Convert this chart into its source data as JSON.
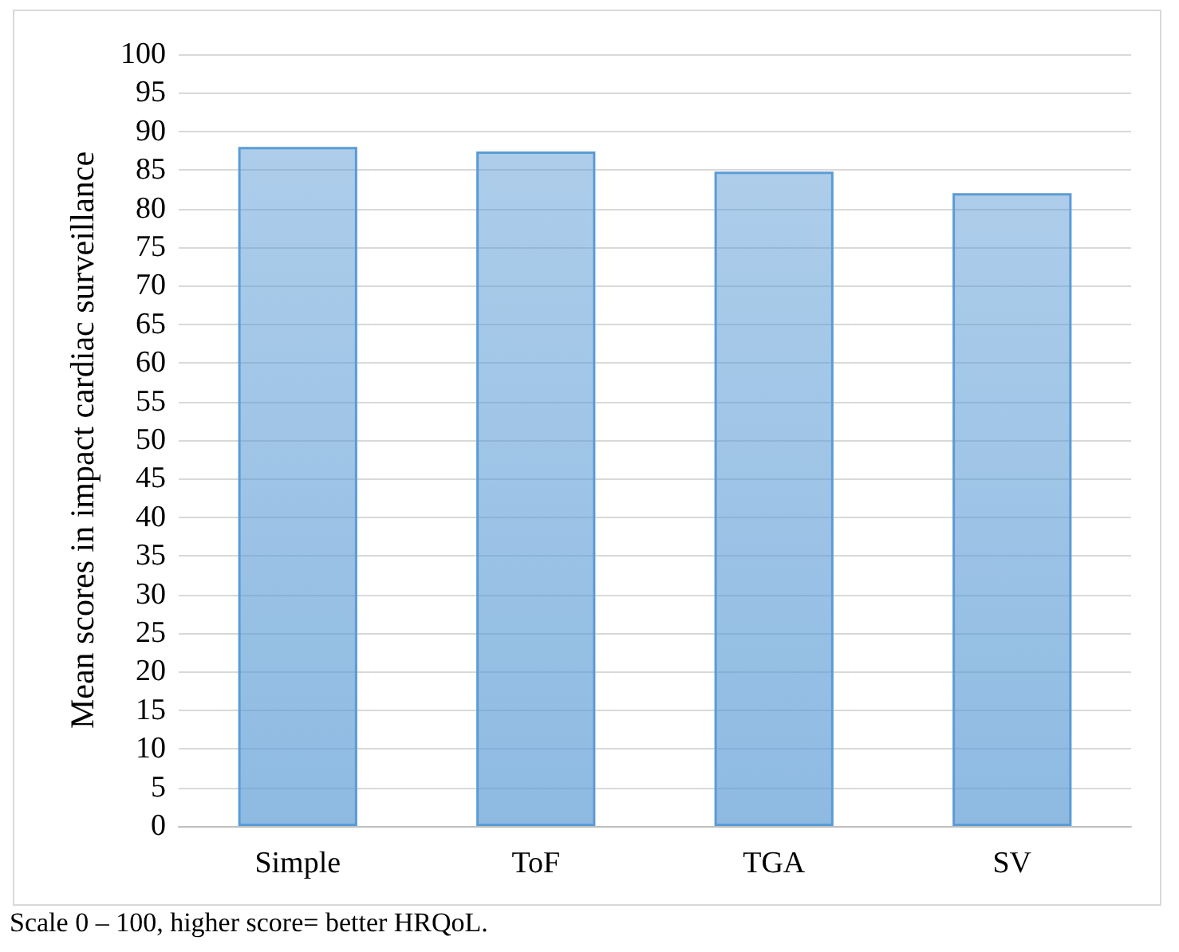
{
  "chart_data": {
    "type": "bar",
    "ylabel": "Mean scores in impact cardiac surveillance",
    "categories": [
      "Simple",
      "ToF",
      "TGA",
      "SV"
    ],
    "values": [
      88,
      87.4,
      84.8,
      82
    ],
    "color": "#5b9bd5",
    "ylim": [
      0,
      100
    ],
    "yticks": [
      0,
      5,
      10,
      15,
      20,
      25,
      30,
      35,
      40,
      45,
      50,
      55,
      60,
      65,
      70,
      75,
      80,
      85,
      90,
      95,
      100
    ],
    "grid": "y",
    "annotations": [
      "Scale 0 – 100, higher score= better HRQoL."
    ]
  }
}
